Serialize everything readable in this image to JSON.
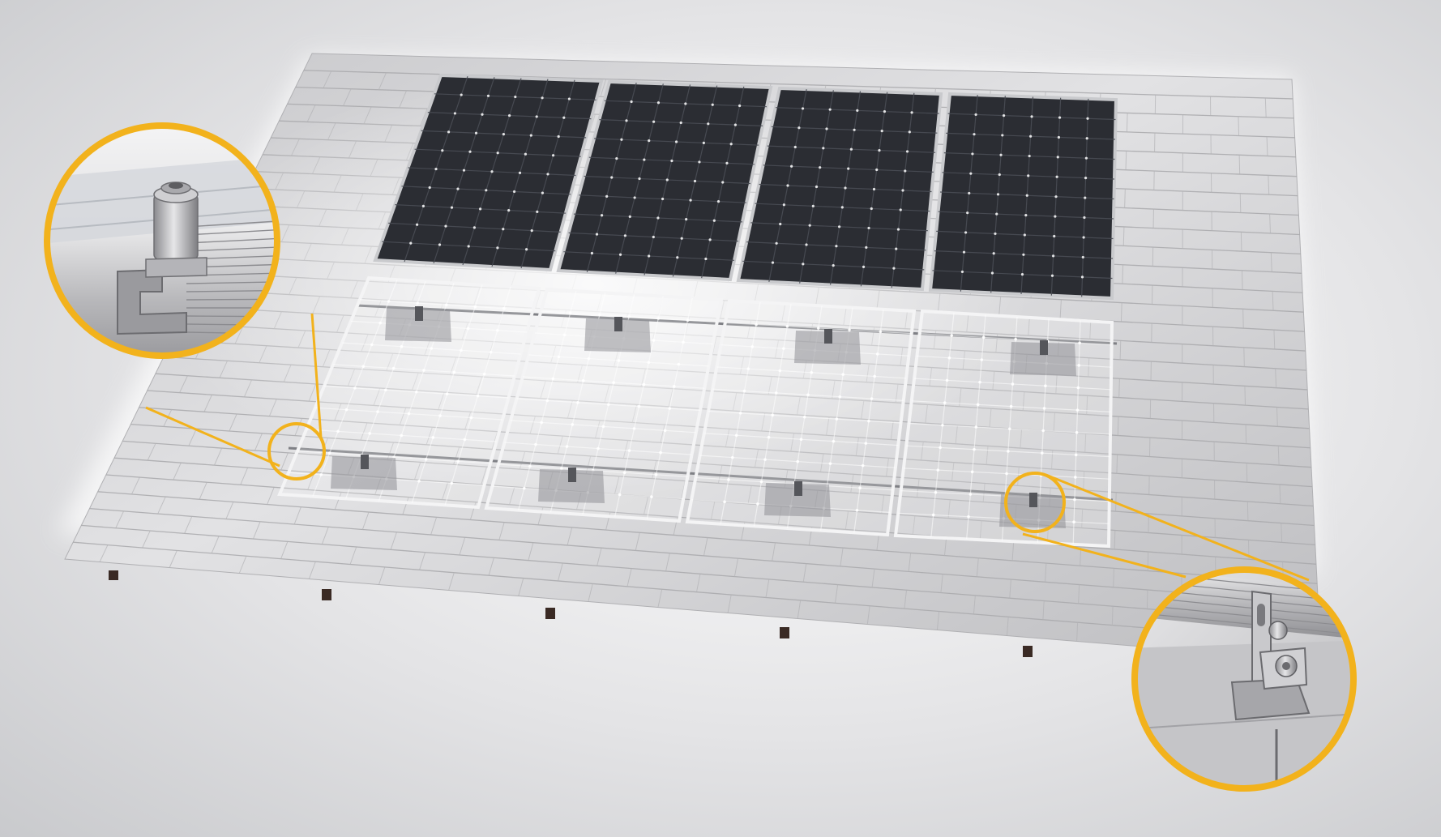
{
  "scene": {
    "subject": "solar-panel-array-on-tiled-roof",
    "roof_color": "#d6d6d8",
    "tile_line_color": "#a9a9ac",
    "panel_color": "#2b2d33",
    "panel_frame_color": "#c9cacd",
    "panel_cell_grid": {
      "columns": 6,
      "rows": 10
    },
    "installed_panels": 4,
    "transparent_panels": 4,
    "callout_ring_color": "#f2b21c",
    "callouts": [
      {
        "icon": "mid-clamp-detail-icon",
        "depicts": "clamp"
      },
      {
        "icon": "roof-hook-bracket-detail-icon",
        "depicts": "bracket"
      }
    ]
  }
}
